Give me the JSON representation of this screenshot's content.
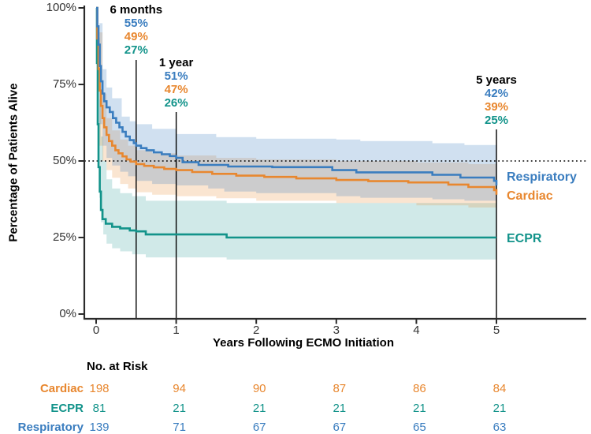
{
  "chart_data": {
    "type": "line",
    "subtype": "kaplan-meier-step-curves-with-ci",
    "title": "",
    "xlabel": "Years Following ECMO Initiation",
    "ylabel": "Percentage of Patients Alive",
    "xlim": [
      0,
      5
    ],
    "ylim": [
      0,
      100
    ],
    "xticks": [
      {
        "t": 0,
        "label": "0"
      },
      {
        "t": 1,
        "label": "1"
      },
      {
        "t": 2,
        "label": "2"
      },
      {
        "t": 3,
        "label": "3"
      },
      {
        "t": 4,
        "label": "4"
      },
      {
        "t": 5,
        "label": "5"
      }
    ],
    "yticks": [
      {
        "pct": 0,
        "label": "0%"
      },
      {
        "pct": 25,
        "label": "25%"
      },
      {
        "pct": 50,
        "label": "50%"
      },
      {
        "pct": 75,
        "label": "75%"
      },
      {
        "pct": 100,
        "label": "100%"
      }
    ],
    "reference_line": {
      "pct": 50,
      "style": "dotted",
      "color": "#000000"
    },
    "series": [
      {
        "name": "Respiratory",
        "color": "#3a7dbf",
        "band_color": "rgba(58,125,191,0.24)",
        "label_pct": 44.6,
        "steps": [
          [
            0,
            100
          ],
          [
            0.015,
            94
          ],
          [
            0.03,
            88
          ],
          [
            0.045,
            81
          ],
          [
            0.06,
            76
          ],
          [
            0.08,
            72
          ],
          [
            0.1,
            69.5
          ],
          [
            0.13,
            67.5
          ],
          [
            0.17,
            66
          ],
          [
            0.21,
            64
          ],
          [
            0.25,
            62.5
          ],
          [
            0.29,
            61
          ],
          [
            0.33,
            59.5
          ],
          [
            0.37,
            58
          ],
          [
            0.42,
            56.8
          ],
          [
            0.47,
            55.8
          ],
          [
            0.5,
            55
          ],
          [
            0.56,
            54.2
          ],
          [
            0.63,
            53.5
          ],
          [
            0.72,
            52.8
          ],
          [
            0.82,
            52.2
          ],
          [
            0.92,
            51.6
          ],
          [
            1.0,
            51
          ],
          [
            1.08,
            49.6
          ],
          [
            1.28,
            48.7
          ],
          [
            1.65,
            48.2
          ],
          [
            2.2,
            48
          ],
          [
            2.95,
            47
          ],
          [
            3.25,
            46.3
          ],
          [
            4.2,
            45.5
          ],
          [
            4.55,
            44.6
          ],
          [
            4.97,
            43.5
          ],
          [
            5.0,
            42
          ]
        ],
        "ci_upper": [
          [
            0,
            100
          ],
          [
            0.04,
            95
          ],
          [
            0.08,
            80
          ],
          [
            0.13,
            74
          ],
          [
            0.2,
            70.5
          ],
          [
            0.32,
            64.5
          ],
          [
            0.42,
            63
          ],
          [
            0.5,
            62
          ],
          [
            0.7,
            60.5
          ],
          [
            1.0,
            58.8
          ],
          [
            1.5,
            57.8
          ],
          [
            2.0,
            57.3
          ],
          [
            3.0,
            57
          ],
          [
            3.3,
            56.5
          ],
          [
            4.2,
            55.8
          ],
          [
            4.6,
            55.2
          ],
          [
            5.0,
            54.8
          ]
        ],
        "ci_lower": [
          [
            0,
            100
          ],
          [
            0.04,
            62
          ],
          [
            0.08,
            55
          ],
          [
            0.13,
            51
          ],
          [
            0.2,
            48.5
          ],
          [
            0.3,
            46.5
          ],
          [
            0.4,
            45
          ],
          [
            0.5,
            43.5
          ],
          [
            0.7,
            42.5
          ],
          [
            1.0,
            42
          ],
          [
            1.4,
            41
          ],
          [
            1.6,
            40
          ],
          [
            2.0,
            39.5
          ],
          [
            3.0,
            38.5
          ],
          [
            3.3,
            38
          ],
          [
            4.2,
            37.5
          ],
          [
            4.6,
            37
          ],
          [
            5.0,
            36.5
          ]
        ]
      },
      {
        "name": "Cardiac",
        "color": "#e8872f",
        "band_color": "rgba(232,135,47,0.22)",
        "label_pct": 38.4,
        "steps": [
          [
            0,
            100
          ],
          [
            0.015,
            90
          ],
          [
            0.03,
            80
          ],
          [
            0.045,
            73
          ],
          [
            0.06,
            68
          ],
          [
            0.08,
            64
          ],
          [
            0.1,
            61
          ],
          [
            0.13,
            58.5
          ],
          [
            0.16,
            56.5
          ],
          [
            0.2,
            55
          ],
          [
            0.24,
            53.5
          ],
          [
            0.28,
            52.5
          ],
          [
            0.33,
            51.5
          ],
          [
            0.38,
            50.5
          ],
          [
            0.43,
            49.8
          ],
          [
            0.5,
            49
          ],
          [
            0.6,
            48.4
          ],
          [
            0.72,
            47.9
          ],
          [
            0.85,
            47.4
          ],
          [
            1.0,
            47
          ],
          [
            1.2,
            46.4
          ],
          [
            1.45,
            45.8
          ],
          [
            1.75,
            45.2
          ],
          [
            2.1,
            44.8
          ],
          [
            2.5,
            44.3
          ],
          [
            3.0,
            43.8
          ],
          [
            3.4,
            43.4
          ],
          [
            3.9,
            43
          ],
          [
            4.4,
            42.3
          ],
          [
            4.65,
            41.5
          ],
          [
            4.97,
            40.5
          ],
          [
            5.0,
            39
          ]
        ],
        "ci_upper": [
          [
            0,
            100
          ],
          [
            0.04,
            92
          ],
          [
            0.08,
            72
          ],
          [
            0.13,
            64
          ],
          [
            0.2,
            60
          ],
          [
            0.3,
            57
          ],
          [
            0.4,
            55
          ],
          [
            0.5,
            53.5
          ],
          [
            0.7,
            52.5
          ],
          [
            1.0,
            51.8
          ],
          [
            1.5,
            51
          ],
          [
            2.0,
            50.5
          ],
          [
            3.0,
            50
          ],
          [
            4.0,
            49.5
          ],
          [
            4.65,
            49
          ],
          [
            5.0,
            48.5
          ]
        ],
        "ci_lower": [
          [
            0,
            100
          ],
          [
            0.04,
            55
          ],
          [
            0.08,
            50
          ],
          [
            0.13,
            47
          ],
          [
            0.2,
            44.5
          ],
          [
            0.3,
            42.5
          ],
          [
            0.4,
            41
          ],
          [
            0.5,
            39.8
          ],
          [
            0.7,
            39
          ],
          [
            1.0,
            38.5
          ],
          [
            1.5,
            37.8
          ],
          [
            2.0,
            37
          ],
          [
            3.0,
            36.3
          ],
          [
            4.0,
            35.5
          ],
          [
            4.65,
            34.8
          ],
          [
            5.0,
            34
          ]
        ]
      },
      {
        "name": "ECPR",
        "color": "#12938a",
        "band_color": "rgba(18,147,138,0.20)",
        "label_pct": 24.5,
        "steps": [
          [
            0,
            100
          ],
          [
            0.01,
            82
          ],
          [
            0.02,
            62
          ],
          [
            0.03,
            48
          ],
          [
            0.045,
            40
          ],
          [
            0.06,
            34
          ],
          [
            0.08,
            31
          ],
          [
            0.12,
            29.5
          ],
          [
            0.2,
            28.5
          ],
          [
            0.3,
            28
          ],
          [
            0.42,
            27.3
          ],
          [
            0.5,
            27
          ],
          [
            0.62,
            26
          ],
          [
            1.63,
            25
          ],
          [
            5.0,
            25
          ]
        ],
        "ci_upper": [
          [
            0,
            100
          ],
          [
            0.02,
            92
          ],
          [
            0.04,
            70
          ],
          [
            0.06,
            58
          ],
          [
            0.09,
            50
          ],
          [
            0.13,
            44
          ],
          [
            0.2,
            41
          ],
          [
            0.3,
            39.5
          ],
          [
            0.45,
            38.5
          ],
          [
            0.62,
            37
          ],
          [
            1.63,
            36.3
          ],
          [
            5.0,
            36
          ]
        ],
        "ci_lower": [
          [
            0,
            100
          ],
          [
            0.02,
            55
          ],
          [
            0.04,
            38
          ],
          [
            0.06,
            30
          ],
          [
            0.09,
            26
          ],
          [
            0.13,
            23
          ],
          [
            0.2,
            21.5
          ],
          [
            0.3,
            20.5
          ],
          [
            0.45,
            19.5
          ],
          [
            0.62,
            18.5
          ],
          [
            1.63,
            17.8
          ],
          [
            5.0,
            17.5
          ]
        ]
      }
    ],
    "annotations": [
      {
        "label": "6 months",
        "t": 0.5,
        "values": [
          {
            "series": "Respiratory",
            "text": "55%"
          },
          {
            "series": "Cardiac",
            "text": "49%"
          },
          {
            "series": "ECPR",
            "text": "27%"
          }
        ]
      },
      {
        "label": "1 year",
        "t": 1,
        "values": [
          {
            "series": "Respiratory",
            "text": "51%"
          },
          {
            "series": "Cardiac",
            "text": "47%"
          },
          {
            "series": "ECPR",
            "text": "26%"
          }
        ]
      },
      {
        "label": "5 years",
        "t": 5,
        "values": [
          {
            "series": "Respiratory",
            "text": "42%"
          },
          {
            "series": "Cardiac",
            "text": "39%"
          },
          {
            "series": "ECPR",
            "text": "25%"
          }
        ]
      }
    ]
  },
  "risk_table": {
    "title": "No. at Risk",
    "columns": [
      0,
      1,
      2,
      3,
      4,
      5
    ],
    "rows": [
      {
        "label": "Cardiac",
        "series": "Cardiac",
        "values": [
          "198",
          "94",
          "90",
          "87",
          "86",
          "84"
        ]
      },
      {
        "label": "ECPR",
        "series": "ECPR",
        "values": [
          "81",
          "21",
          "21",
          "21",
          "21",
          "21"
        ]
      },
      {
        "label": "Respiratory",
        "series": "Respiratory",
        "values": [
          "139",
          "71",
          "67",
          "67",
          "65",
          "63"
        ]
      }
    ]
  }
}
